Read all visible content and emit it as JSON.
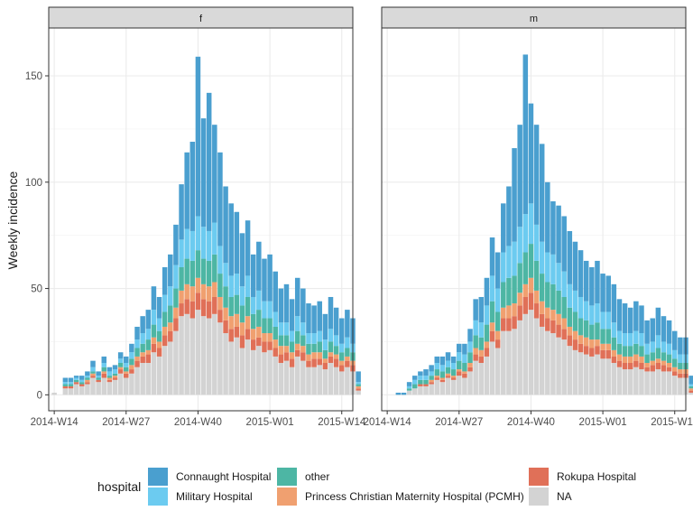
{
  "chart_data": {
    "type": "bar",
    "stacked": true,
    "ylabel": "Weekly incidence",
    "xlabel": "",
    "ylim": [
      0,
      170
    ],
    "y_ticks": [
      0,
      50,
      100,
      150
    ],
    "x_ticks": [
      "2014-W14",
      "2014-W27",
      "2014-W40",
      "2015-W01",
      "2015-W14"
    ],
    "x_tick_week_index": [
      0,
      13,
      26,
      39,
      52
    ],
    "grid": true,
    "legend": {
      "title": "hospital",
      "position": "bottom",
      "entries": [
        "Connaught Hospital",
        "Military Hospital",
        "other",
        "Princess Christian Maternity Hospital (PCMH)",
        "Rokupa Hospital",
        "NA"
      ]
    },
    "stack_order": [
      "NA",
      "Rokupa Hospital",
      "Princess Christian Maternity Hospital (PCMH)",
      "other",
      "Military Hospital",
      "Connaught Hospital"
    ],
    "colors": {
      "Connaught Hospital": "#4a9fcf",
      "Military Hospital": "#6ccbf0",
      "other": "#4db6a4",
      "Princess Christian Maternity Hospital (PCMH)": "#f0a070",
      "Rokupa Hospital": "#e07058",
      "NA": "#d3d3d3"
    },
    "facets": [
      {
        "label": "f",
        "weeks": [
          "2014-W14",
          "2014-W15",
          "2014-W16",
          "2014-W17",
          "2014-W18",
          "2014-W19",
          "2014-W20",
          "2014-W21",
          "2014-W22",
          "2014-W23",
          "2014-W24",
          "2014-W25",
          "2014-W26",
          "2014-W27",
          "2014-W28",
          "2014-W29",
          "2014-W30",
          "2014-W31",
          "2014-W32",
          "2014-W33",
          "2014-W34",
          "2014-W35",
          "2014-W36",
          "2014-W37",
          "2014-W38",
          "2014-W39",
          "2014-W40",
          "2014-W41",
          "2014-W42",
          "2014-W43",
          "2014-W44",
          "2014-W45",
          "2014-W46",
          "2014-W47",
          "2014-W48",
          "2014-W49",
          "2014-W50",
          "2014-W51",
          "2014-W52",
          "2015-W01",
          "2015-W02",
          "2015-W03",
          "2015-W04",
          "2015-W05",
          "2015-W06",
          "2015-W07",
          "2015-W08",
          "2015-W09",
          "2015-W10",
          "2015-W11",
          "2015-W12",
          "2015-W13",
          "2015-W14",
          "2015-W15",
          "2015-W16",
          "2015-W17"
        ],
        "series": [
          {
            "name": "NA",
            "values": [
              1,
              0,
              3,
              3,
              5,
              4,
              5,
              8,
              6,
              8,
              6,
              7,
              10,
              8,
              10,
              13,
              15,
              15,
              20,
              18,
              23,
              25,
              30,
              37,
              38,
              36,
              40,
              37,
              36,
              38,
              34,
              29,
              25,
              27,
              22,
              26,
              21,
              23,
              20,
              21,
              18,
              15,
              16,
              13,
              18,
              16,
              13,
              13,
              14,
              12,
              15,
              13,
              11,
              13,
              11,
              2
            ]
          },
          {
            "name": "Rokupa Hospital",
            "values": [
              0,
              0,
              1,
              1,
              1,
              1,
              1,
              1,
              1,
              2,
              1,
              1,
              2,
              2,
              2,
              3,
              3,
              4,
              4,
              4,
              5,
              5,
              6,
              6,
              7,
              8,
              8,
              8,
              8,
              8,
              6,
              6,
              6,
              5,
              6,
              5,
              5,
              4,
              5,
              4,
              4,
              4,
              4,
              4,
              3,
              4,
              3,
              4,
              3,
              3,
              3,
              4,
              3,
              3,
              3,
              1
            ]
          },
          {
            "name": "Princess Christian Maternity Hospital (PCMH)",
            "values": [
              0,
              0,
              0,
              0,
              0,
              0,
              1,
              1,
              0,
              1,
              1,
              1,
              1,
              1,
              2,
              2,
              2,
              2,
              3,
              3,
              4,
              4,
              5,
              6,
              7,
              7,
              7,
              7,
              7,
              7,
              6,
              6,
              6,
              6,
              6,
              6,
              5,
              5,
              4,
              4,
              4,
              4,
              3,
              3,
              3,
              3,
              3,
              3,
              3,
              2,
              2,
              2,
              2,
              2,
              2,
              1
            ]
          },
          {
            "name": "other",
            "values": [
              0,
              0,
              1,
              1,
              1,
              1,
              1,
              1,
              1,
              2,
              1,
              1,
              2,
              2,
              3,
              4,
              4,
              5,
              6,
              5,
              7,
              8,
              9,
              11,
              12,
              12,
              13,
              12,
              12,
              13,
              11,
              10,
              9,
              9,
              8,
              9,
              7,
              8,
              7,
              7,
              6,
              5,
              5,
              5,
              6,
              5,
              5,
              4,
              5,
              4,
              5,
              4,
              4,
              4,
              4,
              1
            ]
          },
          {
            "name": "Military Hospital",
            "values": [
              0,
              0,
              1,
              1,
              1,
              1,
              1,
              2,
              1,
              2,
              2,
              2,
              2,
              2,
              3,
              4,
              5,
              5,
              7,
              6,
              8,
              9,
              11,
              13,
              14,
              14,
              16,
              15,
              14,
              15,
              13,
              11,
              10,
              10,
              9,
              10,
              8,
              9,
              8,
              8,
              7,
              6,
              6,
              5,
              7,
              6,
              5,
              5,
              5,
              5,
              6,
              5,
              4,
              5,
              4,
              1
            ]
          },
          {
            "name": "Connaught Hospital",
            "values": [
              0,
              0,
              2,
              2,
              1,
              2,
              2,
              3,
              2,
              3,
              2,
              2,
              3,
              3,
              4,
              6,
              8,
              9,
              11,
              10,
              13,
              15,
              19,
              26,
              36,
              42,
              75,
              51,
              65,
              46,
              44,
              36,
              34,
              29,
              25,
              26,
              20,
              23,
              20,
              22,
              19,
              16,
              18,
              15,
              18,
              16,
              14,
              13,
              14,
              12,
              15,
              13,
              12,
              13,
              12,
              5
            ]
          }
        ]
      },
      {
        "label": "m",
        "weeks": [
          "2014-W15",
          "2014-W16",
          "2014-W17",
          "2014-W18",
          "2014-W19",
          "2014-W20",
          "2014-W21",
          "2014-W22",
          "2014-W23",
          "2014-W24",
          "2014-W25",
          "2014-W26",
          "2014-W27",
          "2014-W28",
          "2014-W29",
          "2014-W30",
          "2014-W31",
          "2014-W32",
          "2014-W33",
          "2014-W34",
          "2014-W35",
          "2014-W36",
          "2014-W37",
          "2014-W38",
          "2014-W39",
          "2014-W40",
          "2014-W41",
          "2014-W42",
          "2014-W43",
          "2014-W44",
          "2014-W45",
          "2014-W46",
          "2014-W47",
          "2014-W48",
          "2014-W49",
          "2014-W50",
          "2014-W51",
          "2014-W52",
          "2015-W01",
          "2015-W02",
          "2015-W03",
          "2015-W04",
          "2015-W05",
          "2015-W06",
          "2015-W07",
          "2015-W08",
          "2015-W09",
          "2015-W10",
          "2015-W11",
          "2015-W12",
          "2015-W13",
          "2015-W14",
          "2015-W15",
          "2015-W16",
          "2015-W17"
        ],
        "series": [
          {
            "name": "NA",
            "values": [
              0,
              0,
              0,
              2,
              3,
              4,
              4,
              5,
              7,
              6,
              8,
              7,
              9,
              8,
              11,
              16,
              15,
              18,
              25,
              22,
              30,
              30,
              31,
              35,
              38,
              40,
              36,
              32,
              30,
              29,
              27,
              26,
              23,
              21,
              20,
              19,
              18,
              19,
              17,
              17,
              15,
              13,
              12,
              12,
              13,
              12,
              11,
              11,
              12,
              11,
              11,
              9,
              8,
              8,
              1
            ]
          },
          {
            "name": "Rokupa Hospital",
            "values": [
              0,
              0,
              0,
              0,
              0,
              1,
              1,
              1,
              1,
              1,
              1,
              1,
              2,
              2,
              2,
              3,
              3,
              4,
              5,
              4,
              6,
              6,
              6,
              7,
              8,
              8,
              7,
              6,
              6,
              6,
              6,
              5,
              5,
              5,
              4,
              4,
              4,
              4,
              4,
              4,
              3,
              3,
              3,
              3,
              3,
              3,
              2,
              3,
              3,
              3,
              2,
              2,
              2,
              2,
              1
            ]
          },
          {
            "name": "Princess Christian Maternity Hospital (PCMH)",
            "values": [
              0,
              0,
              0,
              0,
              0,
              0,
              0,
              1,
              1,
              1,
              1,
              1,
              1,
              1,
              2,
              3,
              3,
              3,
              4,
              4,
              5,
              6,
              6,
              6,
              6,
              7,
              6,
              6,
              5,
              5,
              5,
              5,
              4,
              4,
              4,
              4,
              4,
              3,
              3,
              3,
              3,
              3,
              3,
              3,
              3,
              3,
              2,
              2,
              2,
              2,
              2,
              2,
              2,
              2,
              1
            ]
          },
          {
            "name": "other",
            "values": [
              0,
              0,
              0,
              1,
              2,
              2,
              2,
              2,
              3,
              3,
              3,
              3,
              4,
              4,
              5,
              6,
              6,
              8,
              10,
              9,
              12,
              13,
              13,
              14,
              15,
              16,
              14,
              13,
              12,
              12,
              11,
              10,
              9,
              9,
              8,
              8,
              7,
              8,
              7,
              7,
              6,
              5,
              5,
              5,
              5,
              5,
              4,
              4,
              5,
              4,
              4,
              4,
              3,
              3,
              1
            ]
          },
          {
            "name": "Military Hospital",
            "values": [
              0,
              0,
              0,
              1,
              2,
              2,
              2,
              2,
              3,
              3,
              3,
              3,
              4,
              4,
              5,
              7,
              7,
              9,
              12,
              11,
              14,
              15,
              16,
              17,
              18,
              19,
              17,
              15,
              14,
              14,
              13,
              12,
              11,
              10,
              10,
              9,
              9,
              9,
              8,
              8,
              7,
              6,
              6,
              6,
              6,
              6,
              5,
              5,
              6,
              5,
              5,
              4,
              4,
              4,
              1
            ]
          },
          {
            "name": "Connaught Hospital",
            "values": [
              0,
              1,
              1,
              2,
              2,
              2,
              3,
              3,
              3,
              4,
              4,
              3,
              4,
              5,
              6,
              10,
              12,
              13,
              18,
              17,
              23,
              28,
              44,
              48,
              75,
              47,
              47,
              46,
              33,
              25,
              27,
              26,
              25,
              23,
              22,
              19,
              18,
              20,
              18,
              17,
              18,
              15,
              14,
              12,
              14,
              13,
              11,
              11,
              13,
              12,
              11,
              9,
              8,
              8,
              4
            ]
          }
        ]
      }
    ]
  }
}
